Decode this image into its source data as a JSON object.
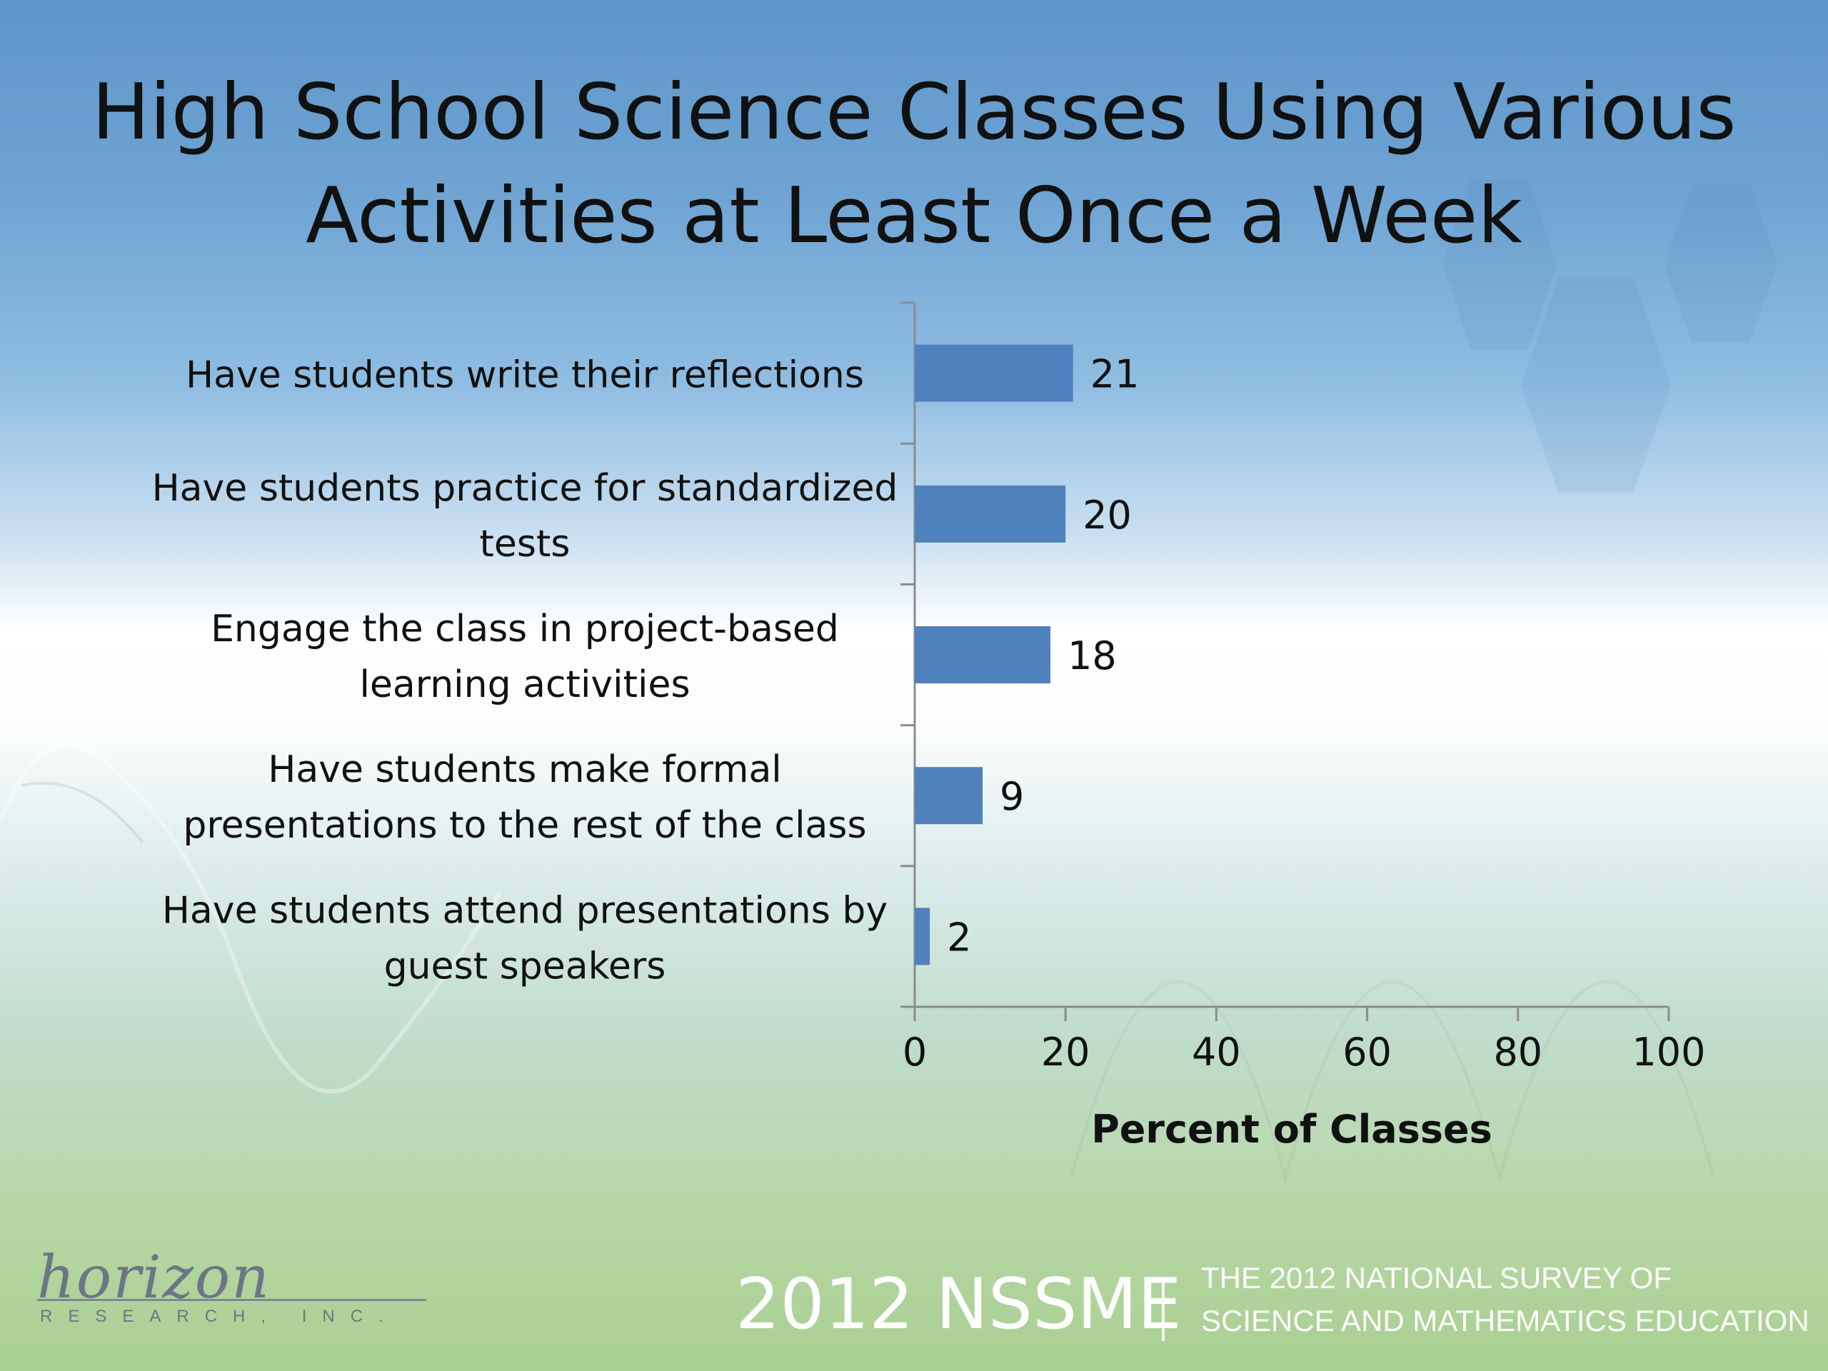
{
  "slide": {
    "title_line1": "High School Science Classes Using Various",
    "title_line2": "Activities at Least Once a Week"
  },
  "chart_data": {
    "type": "bar",
    "orientation": "horizontal",
    "categories": [
      [
        "Have students write their reflections"
      ],
      [
        "Have students practice for standardized",
        "tests"
      ],
      [
        "Engage the class in project-based",
        "learning activities"
      ],
      [
        "Have students make formal",
        "presentations to the rest of the class"
      ],
      [
        "Have students attend presentations by",
        "guest speakers"
      ]
    ],
    "values": [
      21,
      20,
      18,
      9,
      2
    ],
    "data_labels": [
      "21",
      "20",
      "18",
      "9",
      "2"
    ],
    "xlabel": "Percent of Classes",
    "xlim": [
      0,
      100
    ],
    "xticks": [
      0,
      20,
      40,
      60,
      80,
      100
    ],
    "xtick_labels": [
      "0",
      "20",
      "40",
      "60",
      "80",
      "100"
    ],
    "bar_color": "#4f81bd",
    "grid": false,
    "legend": "none"
  },
  "footer": {
    "logo_script": "horizon",
    "logo_sub": "RESEARCH, INC.",
    "survey_name": "2012 NSSME",
    "survey_line1": "THE 2012 NATIONAL SURVEY OF",
    "survey_line2": "SCIENCE AND MATHEMATICS EDUCATION"
  }
}
